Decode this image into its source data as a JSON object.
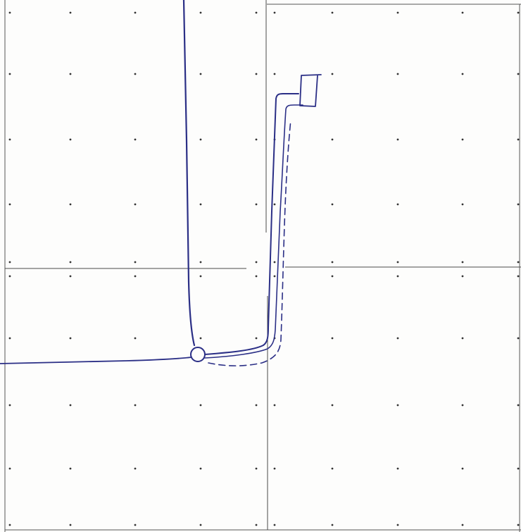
{
  "sheet": {
    "type": "hand-drawn sketch on dot-grid paper",
    "quadrants": 4,
    "dot_grid": {
      "columns_per_quadrant": 4,
      "rows_per_quadrant": 4
    },
    "ink_color": "#2b2f86",
    "line_color": "#4a4a4a"
  },
  "sketch": {
    "strokes": [
      {
        "name": "vertical-pen-stroke",
        "style": "solid"
      },
      {
        "name": "horizontal-pen-stroke",
        "style": "solid"
      },
      {
        "name": "junction-circle",
        "style": "solid"
      },
      {
        "name": "l-route-outer",
        "style": "solid"
      },
      {
        "name": "l-route-inner",
        "style": "solid"
      },
      {
        "name": "l-route-dashed",
        "style": "dashed"
      },
      {
        "name": "end-box",
        "style": "solid"
      }
    ]
  }
}
